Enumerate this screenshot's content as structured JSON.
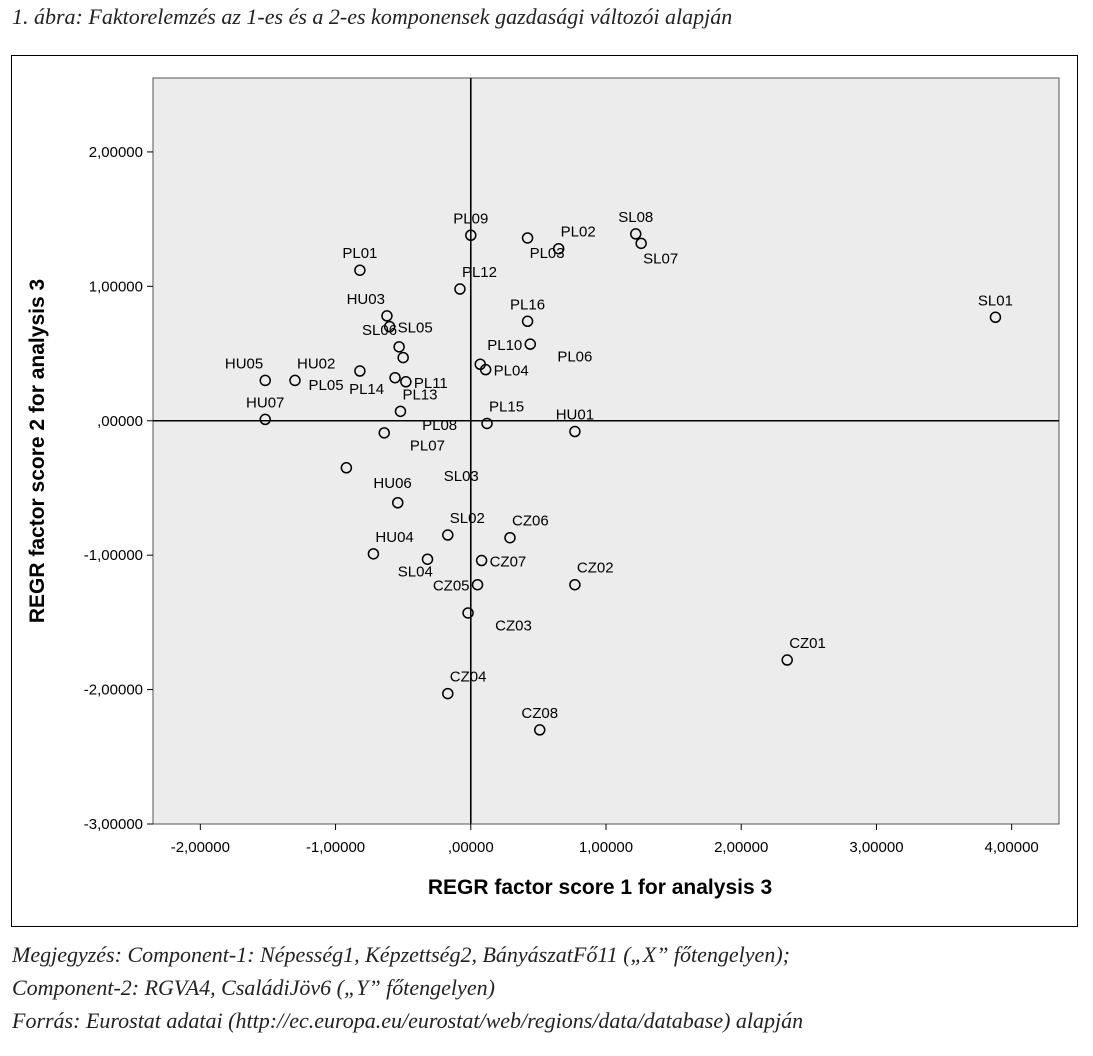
{
  "caption": "1. ábra: Faktorelemzés az 1-es és a 2-es komponensek gazdasági változói alapján",
  "notes": [
    "Megjegyzés: Component-1: Népesség1, Képzettség2, BányászatFő11 („X” főtengelyen);",
    "Component-2: RGVA4, CsaládiJöv6 („Y” főtengelyen)",
    "Forrás: Eurostat adatai (http://ec.europa.eu/eurostat/web/regions/data/database) alapján"
  ],
  "chart_data": {
    "type": "scatter",
    "title": "",
    "xlabel": "REGR factor score   1 for analysis 3",
    "ylabel": "REGR factor score   2 for analysis 3",
    "xlim": [
      -2.35,
      4.35
    ],
    "ylim": [
      -3.0,
      2.55
    ],
    "xticks": [
      -2,
      -1,
      0,
      1,
      2,
      3,
      4
    ],
    "xtick_labels": [
      "-2,00000",
      "-1,00000",
      ",00000",
      "1,00000",
      "2,00000",
      "3,00000",
      "4,00000"
    ],
    "yticks": [
      2,
      1,
      0,
      -1,
      -2,
      -3
    ],
    "ytick_labels": [
      "2,00000",
      "1,00000",
      ",00000",
      "-1,00000",
      "-2,00000",
      "-3,00000"
    ],
    "reference_lines": {
      "x": 0,
      "y": 0
    },
    "colors": {
      "plot_bg": "#ececec",
      "marker": "#000000",
      "axis": "#000000"
    },
    "points": [
      {
        "label": "PL09",
        "x": 0.0,
        "y": 1.38,
        "label_pos": "above"
      },
      {
        "label": "PL02",
        "x": 0.65,
        "y": 1.28,
        "label_pos": "upper-right"
      },
      {
        "label": "PL03",
        "x": 0.42,
        "y": 1.36,
        "label_pos": "lower-right"
      },
      {
        "label": "SL08",
        "x": 1.22,
        "y": 1.39,
        "label_pos": "above"
      },
      {
        "label": "SL07",
        "x": 1.26,
        "y": 1.32,
        "label_pos": "lower-right"
      },
      {
        "label": "PL01",
        "x": -0.82,
        "y": 1.12,
        "label_pos": "above"
      },
      {
        "label": "PL12",
        "x": -0.08,
        "y": 0.98,
        "label_pos": "upper-right"
      },
      {
        "label": "SL01",
        "x": 3.88,
        "y": 0.77,
        "label_pos": "above"
      },
      {
        "label": "HU03",
        "x": -0.62,
        "y": 0.78,
        "label_pos": "upper-left"
      },
      {
        "label": "SL05",
        "x": -0.6,
        "y": 0.7,
        "label_pos": "right"
      },
      {
        "label": "PL16",
        "x": 0.42,
        "y": 0.74,
        "label_pos": "above"
      },
      {
        "label": "SL06",
        "x": -0.53,
        "y": 0.55,
        "label_pos": "upper-left"
      },
      {
        "label": "PL10",
        "x": 0.44,
        "y": 0.57,
        "label_pos": "left"
      },
      {
        "label": "PL06",
        "x": 0.07,
        "y": 0.42,
        "label_pos": "none"
      },
      {
        "label": "PL04",
        "x": 0.11,
        "y": 0.38,
        "label_pos": "right"
      },
      {
        "label": "HU05",
        "x": -1.52,
        "y": 0.3,
        "label_pos": "upper-left"
      },
      {
        "label": "HU02",
        "x": -1.3,
        "y": 0.3,
        "label_pos": "upper-right"
      },
      {
        "label": "PL05",
        "x": -0.56,
        "y": 0.32,
        "label_pos": "none"
      },
      {
        "label": "PL11",
        "x": -0.48,
        "y": 0.29,
        "label_pos": "right"
      },
      {
        "label": "PL14",
        "x": -0.82,
        "y": 0.37,
        "label_pos": "none"
      },
      {
        "label": "PL13",
        "x": -0.52,
        "y": 0.07,
        "label_pos": "upper-right"
      },
      {
        "label": "HU07",
        "x": -1.52,
        "y": 0.01,
        "label_pos": "above"
      },
      {
        "label": "PL15",
        "x": 0.12,
        "y": -0.02,
        "label_pos": "upper-right"
      },
      {
        "label": "PL08",
        "x": -0.64,
        "y": -0.09,
        "label_pos": "none"
      },
      {
        "label": "HU01",
        "x": 0.77,
        "y": -0.08,
        "label_pos": "above"
      },
      {
        "label": "PL07",
        "x": -0.5,
        "y": 0.47,
        "label_pos": "none"
      },
      {
        "label": "HU06",
        "x": -0.92,
        "y": -0.35,
        "label_pos": "none"
      },
      {
        "label": "SL03",
        "x": -0.54,
        "y": -0.61,
        "label_pos": "none"
      },
      {
        "label": "SL02",
        "x": -0.17,
        "y": -0.85,
        "label_pos": "upper-right"
      },
      {
        "label": "CZ06",
        "x": 0.29,
        "y": -0.87,
        "label_pos": "upper-right"
      },
      {
        "label": "HU04",
        "x": -0.72,
        "y": -0.99,
        "label_pos": "upper-right"
      },
      {
        "label": "SL04",
        "x": -0.32,
        "y": -1.03,
        "label_pos": "none"
      },
      {
        "label": "CZ07",
        "x": 0.08,
        "y": -1.04,
        "label_pos": "right"
      },
      {
        "label": "CZ05",
        "x": 0.05,
        "y": -1.22,
        "label_pos": "left"
      },
      {
        "label": "CZ02",
        "x": 0.77,
        "y": -1.22,
        "label_pos": "upper-right"
      },
      {
        "label": "CZ03",
        "x": -0.02,
        "y": -1.43,
        "label_pos": "none"
      },
      {
        "label": "CZ01",
        "x": 2.34,
        "y": -1.78,
        "label_pos": "upper-right"
      },
      {
        "label": "CZ04",
        "x": -0.17,
        "y": -2.03,
        "label_pos": "upper-right"
      },
      {
        "label": "CZ08",
        "x": 0.51,
        "y": -2.3,
        "label_pos": "above"
      }
    ],
    "free_labels": [
      {
        "text": "PL05",
        "x": -1.2,
        "y": 0.23
      },
      {
        "text": "PL14",
        "x": -0.9,
        "y": 0.2
      },
      {
        "text": "PL06",
        "x": 0.64,
        "y": 0.44
      },
      {
        "text": "PL08",
        "x": -0.36,
        "y": -0.07
      },
      {
        "text": "PL07",
        "x": -0.45,
        "y": -0.22
      },
      {
        "text": "HU06",
        "x": -0.72,
        "y": -0.5
      },
      {
        "text": "SL03",
        "x": -0.2,
        "y": -0.45
      },
      {
        "text": "SL04",
        "x": -0.54,
        "y": -1.16
      },
      {
        "text": "CZ03",
        "x": 0.18,
        "y": -1.56
      }
    ]
  }
}
